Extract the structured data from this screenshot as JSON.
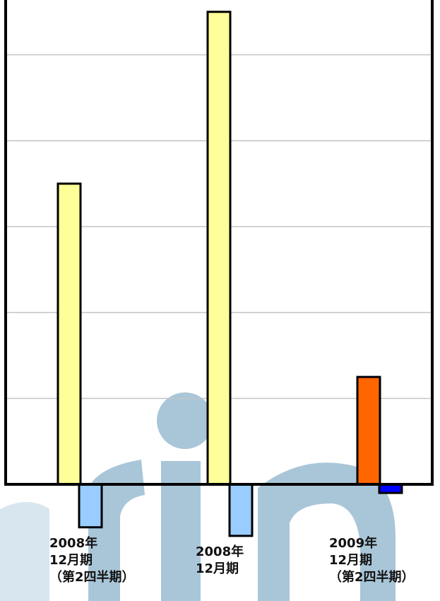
{
  "chart_data": {
    "type": "bar",
    "categories": [
      {
        "lines": [
          "2008年",
          "12月期",
          "（第2四半期）"
        ]
      },
      {
        "lines": [
          "2008年",
          "12月期"
        ]
      },
      {
        "lines": [
          "2009年",
          "12月期",
          "（第2四半期）"
        ]
      }
    ],
    "series": [
      {
        "values": [
          3.5,
          5.5,
          1.25
        ],
        "colors": [
          "#ffff99",
          "#ffff99",
          "#ff6600"
        ]
      },
      {
        "values": [
          -0.5,
          -0.6,
          -0.1
        ],
        "colors": [
          "#99ccff",
          "#99ccff",
          "#0000ff"
        ]
      }
    ],
    "ylim": [
      -0.6,
      5.6
    ],
    "gridlines": [
      1,
      2,
      3,
      4,
      5
    ],
    "grid": true,
    "legend": "none",
    "watermark_colors": [
      "#a9c6d8",
      "#d7e6ef"
    ]
  }
}
